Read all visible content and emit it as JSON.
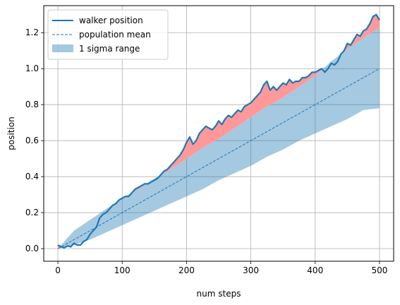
{
  "chart_data": {
    "type": "line",
    "xlabel": "num steps",
    "ylabel": "position",
    "xlim": [
      -22,
      522
    ],
    "ylim": [
      -0.07,
      1.35
    ],
    "xticks": [
      0,
      100,
      200,
      300,
      400,
      500
    ],
    "yticks": [
      0.0,
      0.2,
      0.4,
      0.6,
      0.8,
      1.0,
      1.2
    ],
    "grid": true,
    "legend_position": "top-left",
    "series": [
      {
        "name": "walker position",
        "style": "solid",
        "color": "#1f77b4",
        "points": [
          [
            0,
            0.02
          ],
          [
            5,
            0.01
          ],
          [
            10,
            0.005
          ],
          [
            15,
            0.015
          ],
          [
            20,
            0.01
          ],
          [
            25,
            0.03
          ],
          [
            30,
            0.02
          ],
          [
            35,
            0.02
          ],
          [
            40,
            0.04
          ],
          [
            45,
            0.05
          ],
          [
            50,
            0.08
          ],
          [
            55,
            0.1
          ],
          [
            60,
            0.12
          ],
          [
            65,
            0.17
          ],
          [
            70,
            0.19
          ],
          [
            75,
            0.2
          ],
          [
            80,
            0.22
          ],
          [
            85,
            0.24
          ],
          [
            90,
            0.25
          ],
          [
            95,
            0.27
          ],
          [
            100,
            0.28
          ],
          [
            105,
            0.29
          ],
          [
            110,
            0.29
          ],
          [
            115,
            0.31
          ],
          [
            120,
            0.33
          ],
          [
            125,
            0.34
          ],
          [
            130,
            0.35
          ],
          [
            135,
            0.36
          ],
          [
            140,
            0.36
          ],
          [
            145,
            0.37
          ],
          [
            150,
            0.38
          ],
          [
            155,
            0.39
          ],
          [
            160,
            0.41
          ],
          [
            165,
            0.43
          ],
          [
            170,
            0.44
          ],
          [
            175,
            0.46
          ],
          [
            180,
            0.48
          ],
          [
            185,
            0.5
          ],
          [
            190,
            0.52
          ],
          [
            195,
            0.55
          ],
          [
            200,
            0.59
          ],
          [
            205,
            0.62
          ],
          [
            210,
            0.58
          ],
          [
            215,
            0.6
          ],
          [
            220,
            0.64
          ],
          [
            225,
            0.66
          ],
          [
            230,
            0.68
          ],
          [
            235,
            0.67
          ],
          [
            240,
            0.66
          ],
          [
            245,
            0.68
          ],
          [
            250,
            0.71
          ],
          [
            255,
            0.69
          ],
          [
            260,
            0.72
          ],
          [
            265,
            0.74
          ],
          [
            270,
            0.73
          ],
          [
            275,
            0.75
          ],
          [
            280,
            0.77
          ],
          [
            285,
            0.76
          ],
          [
            290,
            0.79
          ],
          [
            295,
            0.8
          ],
          [
            300,
            0.81
          ],
          [
            305,
            0.83
          ],
          [
            310,
            0.85
          ],
          [
            315,
            0.87
          ],
          [
            320,
            0.91
          ],
          [
            325,
            0.93
          ],
          [
            330,
            0.88
          ],
          [
            335,
            0.9
          ],
          [
            340,
            0.88
          ],
          [
            345,
            0.9
          ],
          [
            350,
            0.92
          ],
          [
            355,
            0.91
          ],
          [
            360,
            0.94
          ],
          [
            365,
            0.92
          ],
          [
            370,
            0.93
          ],
          [
            375,
            0.93
          ],
          [
            380,
            0.95
          ],
          [
            385,
            0.95
          ],
          [
            390,
            0.96
          ],
          [
            395,
            0.98
          ],
          [
            400,
            0.98
          ],
          [
            405,
            0.99
          ],
          [
            410,
            1.0
          ],
          [
            415,
            0.98
          ],
          [
            420,
            1.0
          ],
          [
            425,
            1.03
          ],
          [
            430,
            1.02
          ],
          [
            435,
            1.04
          ],
          [
            440,
            1.08
          ],
          [
            445,
            1.1
          ],
          [
            450,
            1.14
          ],
          [
            455,
            1.13
          ],
          [
            460,
            1.16
          ],
          [
            465,
            1.19
          ],
          [
            470,
            1.18
          ],
          [
            475,
            1.21
          ],
          [
            480,
            1.22
          ],
          [
            485,
            1.25
          ],
          [
            490,
            1.29
          ],
          [
            495,
            1.3
          ],
          [
            500,
            1.27
          ]
        ]
      },
      {
        "name": "population mean",
        "style": "dashed",
        "color": "#1f77b4",
        "points": [
          [
            0,
            0.0
          ],
          [
            500,
            1.0
          ]
        ]
      }
    ],
    "band": {
      "name": "1 sigma range",
      "color": "#1f77b4",
      "opacity": 0.4,
      "x": [
        0,
        25,
        50,
        75,
        100,
        125,
        150,
        175,
        200,
        225,
        250,
        275,
        300,
        325,
        350,
        375,
        400,
        425,
        450,
        475,
        500
      ],
      "lower": [
        0.0,
        0.02,
        0.05,
        0.09,
        0.13,
        0.17,
        0.21,
        0.25,
        0.29,
        0.33,
        0.38,
        0.42,
        0.46,
        0.51,
        0.55,
        0.6,
        0.64,
        0.68,
        0.72,
        0.77,
        0.78
      ],
      "upper": [
        0.0,
        0.1,
        0.16,
        0.22,
        0.28,
        0.33,
        0.39,
        0.44,
        0.5,
        0.56,
        0.61,
        0.67,
        0.73,
        0.79,
        0.84,
        0.9,
        0.96,
        1.04,
        1.11,
        1.17,
        1.23
      ]
    },
    "exceed_fill_color": "#ff9999"
  }
}
